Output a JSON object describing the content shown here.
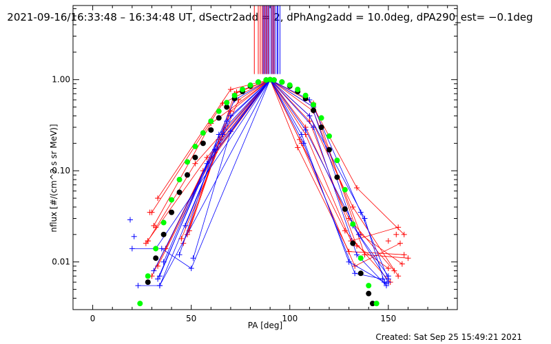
{
  "chart_data": {
    "type": "scatter",
    "title": "2021-09-16/16:33:48 – 16:34:48 UT, dSectr2add = 2, dPhAng2add = 10.0deg, dPA290_est= −0.1deg",
    "xlabel": "PA [deg]",
    "ylabel": "nflux [#/(cm^2 s sr MeV)]",
    "xlim": [
      -10,
      185
    ],
    "ylim": [
      0.003,
      6.5
    ],
    "yscale": "log",
    "x_ticks": [
      0,
      50,
      100,
      150
    ],
    "x_tick_labels": [
      "0",
      "50",
      "100",
      "150"
    ],
    "y_ticks": [
      0.01,
      0.1,
      1.0
    ],
    "y_tick_labels": [
      "0.01",
      "0.10",
      "1.00"
    ],
    "footer": "Created: Sat Sep 25 15:49:21 2021",
    "colors": {
      "red": "#ff0000",
      "blue": "#0000ff",
      "black": "#000000",
      "green": "#00ff00"
    },
    "vertical_lines": {
      "description": "vertical lines above the plot peak",
      "red_x": [
        82,
        84,
        85,
        86,
        87,
        88,
        89,
        91,
        92
      ],
      "blue_x": [
        86.5,
        87.5,
        88.5,
        89.5,
        90.5,
        91.5,
        92.5,
        93.5,
        94,
        95
      ],
      "y_range": [
        1.15,
        6.5
      ]
    },
    "series": [
      {
        "name": "fit-black",
        "color": "#000000",
        "marker": "filled-circle",
        "x": [
          28,
          32,
          36,
          40,
          44,
          48,
          52,
          56,
          60,
          64,
          68,
          72,
          76,
          80,
          84,
          88,
          90,
          92,
          96,
          100,
          104,
          108,
          112,
          116,
          120,
          124,
          128,
          132,
          136,
          140,
          142
        ],
        "y": [
          0.006,
          0.011,
          0.02,
          0.035,
          0.058,
          0.09,
          0.14,
          0.2,
          0.28,
          0.38,
          0.5,
          0.62,
          0.74,
          0.85,
          0.94,
          0.99,
          1.0,
          0.99,
          0.94,
          0.85,
          0.74,
          0.62,
          0.46,
          0.3,
          0.17,
          0.085,
          0.038,
          0.016,
          0.0075,
          0.0045,
          0.0035
        ]
      },
      {
        "name": "fit-green",
        "color": "#00ff00",
        "marker": "filled-circle",
        "x": [
          24,
          28,
          32,
          36,
          40,
          44,
          48,
          52,
          56,
          60,
          64,
          68,
          72,
          76,
          80,
          84,
          88,
          90,
          92,
          96,
          100,
          104,
          108,
          112,
          116,
          120,
          124,
          128,
          132,
          136,
          140,
          144
        ],
        "y": [
          0.0035,
          0.007,
          0.014,
          0.027,
          0.048,
          0.08,
          0.125,
          0.185,
          0.26,
          0.35,
          0.45,
          0.56,
          0.67,
          0.78,
          0.87,
          0.94,
          0.99,
          1.0,
          0.99,
          0.94,
          0.87,
          0.78,
          0.67,
          0.53,
          0.38,
          0.24,
          0.13,
          0.062,
          0.026,
          0.011,
          0.0055,
          0.0035
        ]
      },
      {
        "name": "red-left-lines",
        "color": "#ff0000",
        "marker": "plus",
        "lines": [
          {
            "x": [
              33,
              70,
              90
            ],
            "y": [
              0.05,
              0.78,
              1.0
            ]
          },
          {
            "x": [
              30,
              66,
              90
            ],
            "y": [
              0.035,
              0.55,
              1.0
            ]
          },
          {
            "x": [
              31,
              60,
              90
            ],
            "y": [
              0.025,
              0.33,
              1.0
            ]
          },
          {
            "x": [
              28,
              52,
              90
            ],
            "y": [
              0.017,
              0.12,
              1.0
            ]
          },
          {
            "x": [
              45,
              74,
              90
            ],
            "y": [
              0.018,
              0.6,
              1.0
            ]
          },
          {
            "x": [
              37,
              64,
              90
            ],
            "y": [
              0.014,
              0.22,
              1.0
            ]
          },
          {
            "x": [
              46,
              70,
              90
            ],
            "y": [
              0.016,
              0.45,
              1.0
            ]
          },
          {
            "x": [
              48,
              72,
              90
            ],
            "y": [
              0.02,
              0.7,
              1.0
            ]
          },
          {
            "x": [
              30,
              56,
              90
            ],
            "y": [
              0.007,
              0.1,
              1.0
            ]
          },
          {
            "x": [
              49,
              73,
              90
            ],
            "y": [
              0.022,
              0.73,
              1.0
            ]
          },
          {
            "x": [
              33,
              62,
              90
            ],
            "y": [
              0.009,
              0.16,
              1.0
            ]
          },
          {
            "x": [
              27,
              58,
              90
            ],
            "y": [
              0.016,
              0.14,
              1.0
            ]
          }
        ],
        "loose_points": {
          "x": [
            29,
            32,
            28
          ],
          "y": [
            0.035,
            0.024,
            0.017
          ]
        }
      },
      {
        "name": "blue-left-lines",
        "color": "#0000ff",
        "marker": "plus",
        "lines": [
          {
            "x": [
              20,
              32,
              90
            ],
            "y": [
              0.014,
              0.014,
              1.0
            ]
          },
          {
            "x": [
              23,
              34,
              90
            ],
            "y": [
              0.0055,
              0.0055,
              1.0
            ]
          },
          {
            "x": [
              35,
              50,
              90
            ],
            "y": [
              0.014,
              0.0085,
              1.0
            ]
          },
          {
            "x": [
              34,
              66,
              90
            ],
            "y": [
              0.0055,
              0.25,
              1.0
            ]
          },
          {
            "x": [
              31,
              62,
              90
            ],
            "y": [
              0.008,
              0.17,
              1.0
            ]
          },
          {
            "x": [
              33,
              68,
              90
            ],
            "y": [
              0.0065,
              0.35,
              1.0
            ]
          },
          {
            "x": [
              36,
              72,
              90
            ],
            "y": [
              0.01,
              0.6,
              1.0
            ]
          },
          {
            "x": [
              47,
              70,
              90
            ],
            "y": [
              0.025,
              0.4,
              1.0
            ]
          },
          {
            "x": [
              34,
              58,
              90
            ],
            "y": [
              0.007,
              0.12,
              1.0
            ]
          },
          {
            "x": [
              44,
              64,
              90
            ],
            "y": [
              0.012,
              0.25,
              1.0
            ]
          },
          {
            "x": [
              51,
              70,
              90
            ],
            "y": [
              0.011,
              0.27,
              1.0
            ]
          }
        ],
        "loose_points": {
          "x": [
            19,
            21
          ],
          "y": [
            0.029,
            0.019
          ]
        }
      },
      {
        "name": "red-right-lines",
        "color": "#ff0000",
        "marker": "plus",
        "lines": [
          {
            "x": [
              90,
              112,
              134,
              158
            ],
            "y": [
              1.0,
              0.5,
              0.065,
              0.02
            ]
          },
          {
            "x": [
              90,
              108,
              130,
              153
            ],
            "y": [
              1.0,
              0.3,
              0.03,
              0.008
            ]
          },
          {
            "x": [
              90,
              110,
              132,
              155
            ],
            "y": [
              1.0,
              0.4,
              0.04,
              0.007
            ]
          },
          {
            "x": [
              90,
              106,
              128,
              151
            ],
            "y": [
              1.0,
              0.2,
              0.022,
              0.006
            ]
          },
          {
            "x": [
              90,
              112,
              136,
              157
            ],
            "y": [
              1.0,
              0.45,
              0.02,
              0.0095
            ]
          },
          {
            "x": [
              90,
              104,
              130,
              158
            ],
            "y": [
              1.0,
              0.18,
              0.013,
              0.012
            ]
          },
          {
            "x": [
              90,
              110,
              134,
              150
            ],
            "y": [
              1.0,
              0.35,
              0.015,
              0.0085
            ]
          },
          {
            "x": [
              90,
              108,
              131,
              155
            ],
            "y": [
              1.0,
              0.25,
              0.017,
              0.024
            ]
          },
          {
            "x": [
              90,
              112,
              138,
              160
            ],
            "y": [
              1.0,
              0.55,
              0.012,
              0.011
            ]
          },
          {
            "x": [
              90,
              105,
              133,
              156
            ],
            "y": [
              1.0,
              0.22,
              0.009,
              0.016
            ]
          }
        ],
        "loose_points": {
          "x": [
            150,
            154
          ],
          "y": [
            0.017,
            0.02
          ]
        }
      },
      {
        "name": "blue-right-lines",
        "color": "#0000ff",
        "marker": "plus",
        "lines": [
          {
            "x": [
              90,
              110,
              132,
              150
            ],
            "y": [
              1.0,
              0.6,
              0.025,
              0.006
            ]
          },
          {
            "x": [
              90,
              112,
              134,
              149
            ],
            "y": [
              1.0,
              0.3,
              0.012,
              0.0055
            ]
          },
          {
            "x": [
              90,
              108,
              135,
              150
            ],
            "y": [
              1.0,
              0.28,
              0.02,
              0.007
            ]
          },
          {
            "x": [
              90,
              110,
              138,
              148
            ],
            "y": [
              1.0,
              0.4,
              0.03,
              0.006
            ]
          },
          {
            "x": [
              90,
              107,
              133,
              147
            ],
            "y": [
              1.0,
              0.2,
              0.0075,
              0.0065
            ]
          },
          {
            "x": [
              90,
              112,
              136,
              150
            ],
            "y": [
              1.0,
              0.5,
              0.035,
              0.0065
            ]
          },
          {
            "x": [
              90,
              106,
              130,
              149
            ],
            "y": [
              1.0,
              0.25,
              0.01,
              0.0058
            ]
          }
        ]
      }
    ]
  }
}
